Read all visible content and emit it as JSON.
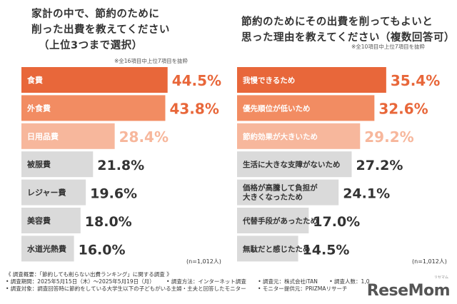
{
  "left": {
    "title": [
      "家計の中で、節約のために",
      "削った出費を教えてください",
      "（上位3つまで選択）"
    ],
    "note": "※全16項目中上位7項目を抜粋",
    "n_label": "(n=1,012人)"
  },
  "right": {
    "title": [
      "節約のためにその出費を削ってもよいと",
      "思った理由を教えてください（複数回答可）"
    ],
    "note": "※全10項目中上位7項目を抜粋",
    "n_label": "(n=1,012人)"
  },
  "survey": {
    "header": "《 調査概要：「節約しても削らない出費ランキング」に関する調査 》",
    "period": "• 調査期間：2025年5月15日（木）～2025年5月19日（月）",
    "method": "• 調査方法：インターネット調査",
    "org": "• 調査元：株式会社iTAN",
    "people": "• 調査人数：1,0",
    "target": "• 調査対象：調査回答時に節約をしている大学生以下の子どもがいる主婦・主夫と回答したモニター",
    "provider": "• モニター提供元：PRIZMAリサーチ"
  },
  "logo": {
    "text": "ReseMom",
    "sub": "リセマム"
  },
  "colors": {
    "top1": "#e8673a",
    "top2": "#f28c62",
    "top3": "#f7b79c",
    "gray": "#dadada",
    "top_value": "#e8673a",
    "gray_value": "#333333"
  },
  "chart_data": [
    {
      "type": "bar",
      "orientation": "horizontal",
      "categories": [
        "食費",
        "外食費",
        "日用品費",
        "被服費",
        "レジャー費",
        "美容費",
        "水道光熱費"
      ],
      "values": [
        44.5,
        43.8,
        28.4,
        21.8,
        19.6,
        18.0,
        16.0
      ],
      "value_labels": [
        "44.5%",
        "43.8%",
        "28.4%",
        "21.8%",
        "19.6%",
        "18.0%",
        "16.0%"
      ],
      "xlim": [
        0,
        50
      ]
    },
    {
      "type": "bar",
      "orientation": "horizontal",
      "categories": [
        "我慢できるため",
        "優先順位が低いため",
        "節約効果が大きいため",
        "生活に大きな支障がないため",
        "価格が高騰して負担が大きくなったため",
        "代替手段があったため",
        "無駄だと感じたため"
      ],
      "values": [
        35.4,
        32.6,
        29.2,
        27.2,
        24.1,
        17.0,
        14.5
      ],
      "value_labels": [
        "35.4%",
        "32.6%",
        "29.2%",
        "27.2%",
        "24.1%",
        "17.0%",
        "14.5%"
      ],
      "xlim": [
        0,
        40
      ]
    }
  ]
}
